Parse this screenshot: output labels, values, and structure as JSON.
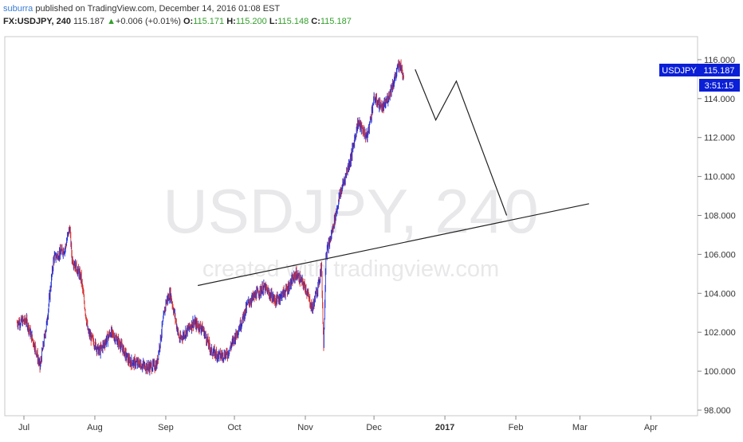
{
  "header": {
    "author": "suburra",
    "published_text": "published on TradingView.com, December 14, 2016 01:08 EST",
    "symbol": "FX:USDJPY, 240",
    "last": "115.187",
    "change_arrow": "▲",
    "change": "+0.006 (+0.01%)",
    "open_label": "O:",
    "open": "115.171",
    "high_label": "H:",
    "high": "115.200",
    "low_label": "L:",
    "low": "115.148",
    "close_label": "C:",
    "close": "115.187"
  },
  "watermark": {
    "main": "USDJPY, 240",
    "sub": "created with tradingview.com"
  },
  "price_tag": {
    "symbol": "USDJPY",
    "price": "115.187",
    "countdown": "3:51:15",
    "color": "#0a1fd6"
  },
  "chart_data": {
    "type": "candlestick",
    "y_axis": {
      "ticks": [
        "98.000",
        "100.000",
        "102.000",
        "104.000",
        "106.000",
        "108.000",
        "110.000",
        "112.000",
        "114.000",
        "116.000"
      ],
      "range": [
        97.6,
        117.6
      ]
    },
    "x_axis": {
      "ticks": [
        "Jul",
        "Aug",
        "Sep",
        "Oct",
        "Nov",
        "Dec",
        "2017",
        "Feb",
        "Mar",
        "Apr"
      ]
    },
    "price_path": [
      [
        "2016-06-28",
        102.5
      ],
      [
        "2016-07-02",
        102.6
      ],
      [
        "2016-07-06",
        101.2
      ],
      [
        "2016-07-08",
        100.2
      ],
      [
        "2016-07-11",
        102.5
      ],
      [
        "2016-07-14",
        105.8
      ],
      [
        "2016-07-19",
        106.3
      ],
      [
        "2016-07-21",
        107.4
      ],
      [
        "2016-07-22",
        105.8
      ],
      [
        "2016-07-26",
        104.8
      ],
      [
        "2016-07-29",
        102.0
      ],
      [
        "2016-08-03",
        101.0
      ],
      [
        "2016-08-08",
        102.0
      ],
      [
        "2016-08-12",
        101.4
      ],
      [
        "2016-08-16",
        100.5
      ],
      [
        "2016-08-20",
        100.4
      ],
      [
        "2016-08-24",
        100.2
      ],
      [
        "2016-08-28",
        100.3
      ],
      [
        "2016-09-01",
        103.5
      ],
      [
        "2016-09-03",
        104.0
      ],
      [
        "2016-09-07",
        101.6
      ],
      [
        "2016-09-13",
        102.5
      ],
      [
        "2016-09-17",
        102.2
      ],
      [
        "2016-09-21",
        101.0
      ],
      [
        "2016-09-25",
        100.8
      ],
      [
        "2016-09-28",
        100.9
      ],
      [
        "2016-10-04",
        102.5
      ],
      [
        "2016-10-07",
        103.5
      ],
      [
        "2016-10-11",
        104.0
      ],
      [
        "2016-10-14",
        104.3
      ],
      [
        "2016-10-19",
        103.6
      ],
      [
        "2016-10-24",
        104.2
      ],
      [
        "2016-10-28",
        105.0
      ],
      [
        "2016-11-01",
        104.3
      ],
      [
        "2016-11-04",
        103.2
      ],
      [
        "2016-11-07",
        104.6
      ],
      [
        "2016-11-08",
        105.5
      ],
      [
        "2016-11-09",
        101.3
      ],
      [
        "2016-11-10",
        106.0
      ],
      [
        "2016-11-12",
        106.8
      ],
      [
        "2016-11-16",
        109.0
      ],
      [
        "2016-11-21",
        111.0
      ],
      [
        "2016-11-24",
        112.8
      ],
      [
        "2016-11-28",
        112.0
      ],
      [
        "2016-12-01",
        114.0
      ],
      [
        "2016-12-05",
        113.5
      ],
      [
        "2016-12-07",
        114.0
      ],
      [
        "2016-12-10",
        115.0
      ],
      [
        "2016-12-12",
        115.8
      ],
      [
        "2016-12-14",
        115.2
      ]
    ],
    "annotations": {
      "trendline": [
        [
          "2016-09-15",
          104.4
        ],
        [
          "2017-03-05",
          108.6
        ]
      ],
      "projection": [
        [
          "2016-12-19",
          115.5
        ],
        [
          "2016-12-28",
          112.9
        ],
        [
          "2017-01-06",
          114.9
        ],
        [
          "2017-01-28",
          108.0
        ]
      ]
    }
  }
}
